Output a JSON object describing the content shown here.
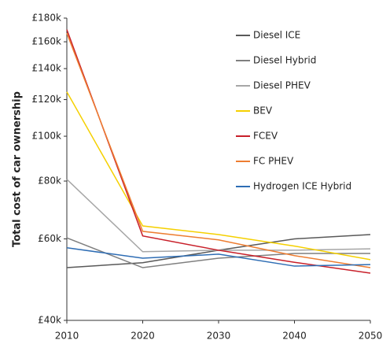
{
  "chart_data": {
    "type": "line",
    "y_label": "Total cost of car ownership",
    "x": [
      2010,
      2020,
      2030,
      2040,
      2050
    ],
    "xlim": [
      2010,
      2050
    ],
    "xticks": [
      2010,
      2020,
      2030,
      2040,
      2050
    ],
    "ylim": [
      40000,
      180000
    ],
    "log_y": true,
    "yticks": [
      {
        "value": 40000,
        "label": "£40k"
      },
      {
        "value": 60000,
        "label": "£60k"
      },
      {
        "value": 80000,
        "label": "£80k"
      },
      {
        "value": 100000,
        "label": "£100k"
      },
      {
        "value": 120000,
        "label": "£120k"
      },
      {
        "value": 140000,
        "label": "£140k"
      },
      {
        "value": 160000,
        "label": "£160k"
      },
      {
        "value": 180000,
        "label": "£180k"
      }
    ],
    "legend": "upper right",
    "series": [
      {
        "name": "Diesel ICE",
        "color": "#595959",
        "values": [
          52000,
          53300,
          56700,
          60000,
          61300
        ]
      },
      {
        "name": "Diesel Hybrid",
        "color": "#7f7f7f",
        "values": [
          60300,
          52000,
          54500,
          55800,
          55800
        ]
      },
      {
        "name": "Diesel PHEV",
        "color": "#a6a6a6",
        "values": [
          80700,
          56300,
          56700,
          56700,
          57100
        ]
      },
      {
        "name": "BEV",
        "color": "#f5d000",
        "values": [
          124700,
          64000,
          61300,
          57900,
          54100
        ]
      },
      {
        "name": "FCEV",
        "color": "#c8202a",
        "values": [
          170000,
          60900,
          56700,
          53400,
          50600
        ]
      },
      {
        "name": "FC PHEV",
        "color": "#ed7d31",
        "values": [
          167000,
          62300,
          59700,
          55200,
          52000
        ]
      },
      {
        "name": "Hydrogen ICE Hybrid",
        "color": "#2e6db4",
        "values": [
          57400,
          54500,
          55600,
          52400,
          52800
        ]
      }
    ]
  }
}
